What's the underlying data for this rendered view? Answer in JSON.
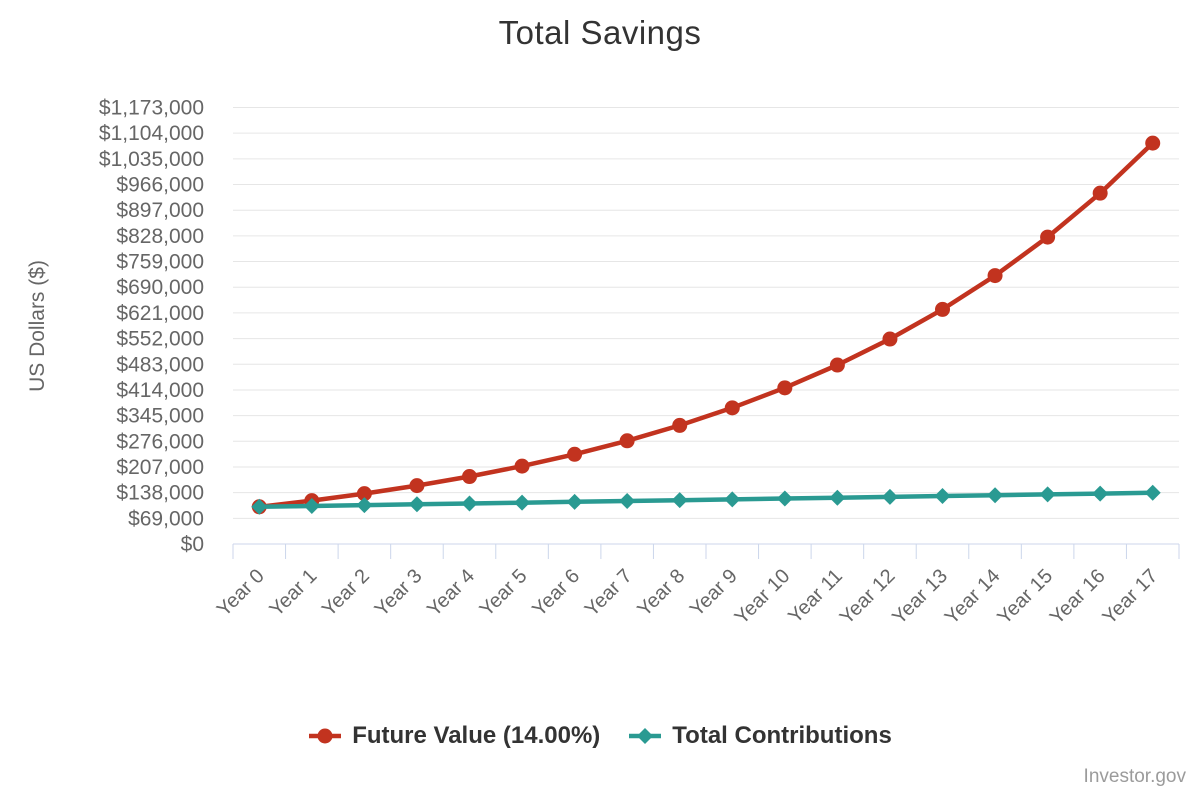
{
  "page": {
    "watermark": "Investor.gov",
    "background_color": "#ffffff"
  },
  "chart_data": {
    "type": "line",
    "title": "Total Savings",
    "xlabel": "",
    "ylabel": "US Dollars ($)",
    "categories": [
      "Year 0",
      "Year 1",
      "Year 2",
      "Year 3",
      "Year 4",
      "Year 5",
      "Year 6",
      "Year 7",
      "Year 8",
      "Year 9",
      "Year 10",
      "Year 11",
      "Year 12",
      "Year 13",
      "Year 14",
      "Year 15",
      "Year 16",
      "Year 17"
    ],
    "ylim": [
      0,
      1173000
    ],
    "ytick_interval": 69000,
    "ytick_labels": [
      "$0",
      "$69,000",
      "$138,000",
      "$207,000",
      "$276,000",
      "$345,000",
      "$414,000",
      "$483,000",
      "$552,000",
      "$621,000",
      "$690,000",
      "$759,000",
      "$828,000",
      "$897,000",
      "$966,000",
      "$1,035,000",
      "$1,104,000",
      "$1,173,000"
    ],
    "grid": "horizontal",
    "legend_position": "bottom",
    "series": [
      {
        "name": "Future Value (14.00%)",
        "color": "#c2331f",
        "marker": "circle",
        "values": [
          100000,
          116531,
          135376,
          156859,
          181350,
          209270,
          241099,
          277384,
          318748,
          365904,
          419661,
          480944,
          550807,
          630451,
          721245,
          824750,
          942746,
          1077261
        ]
      },
      {
        "name": "Total Contributions",
        "color": "#2a9a92",
        "marker": "diamond",
        "values": [
          100000,
          102220,
          104440,
          106660,
          108880,
          111100,
          113320,
          115540,
          117760,
          119980,
          122200,
          124420,
          126640,
          128860,
          131080,
          133300,
          135520,
          137740
        ]
      }
    ],
    "colors": {
      "grid_line": "#e6e6e6",
      "axis_line": "#ccd6eb",
      "axis_label": "#666666",
      "title_text": "#333333",
      "legend_text": "#333333",
      "watermark_text": "#9b9b9b"
    }
  }
}
